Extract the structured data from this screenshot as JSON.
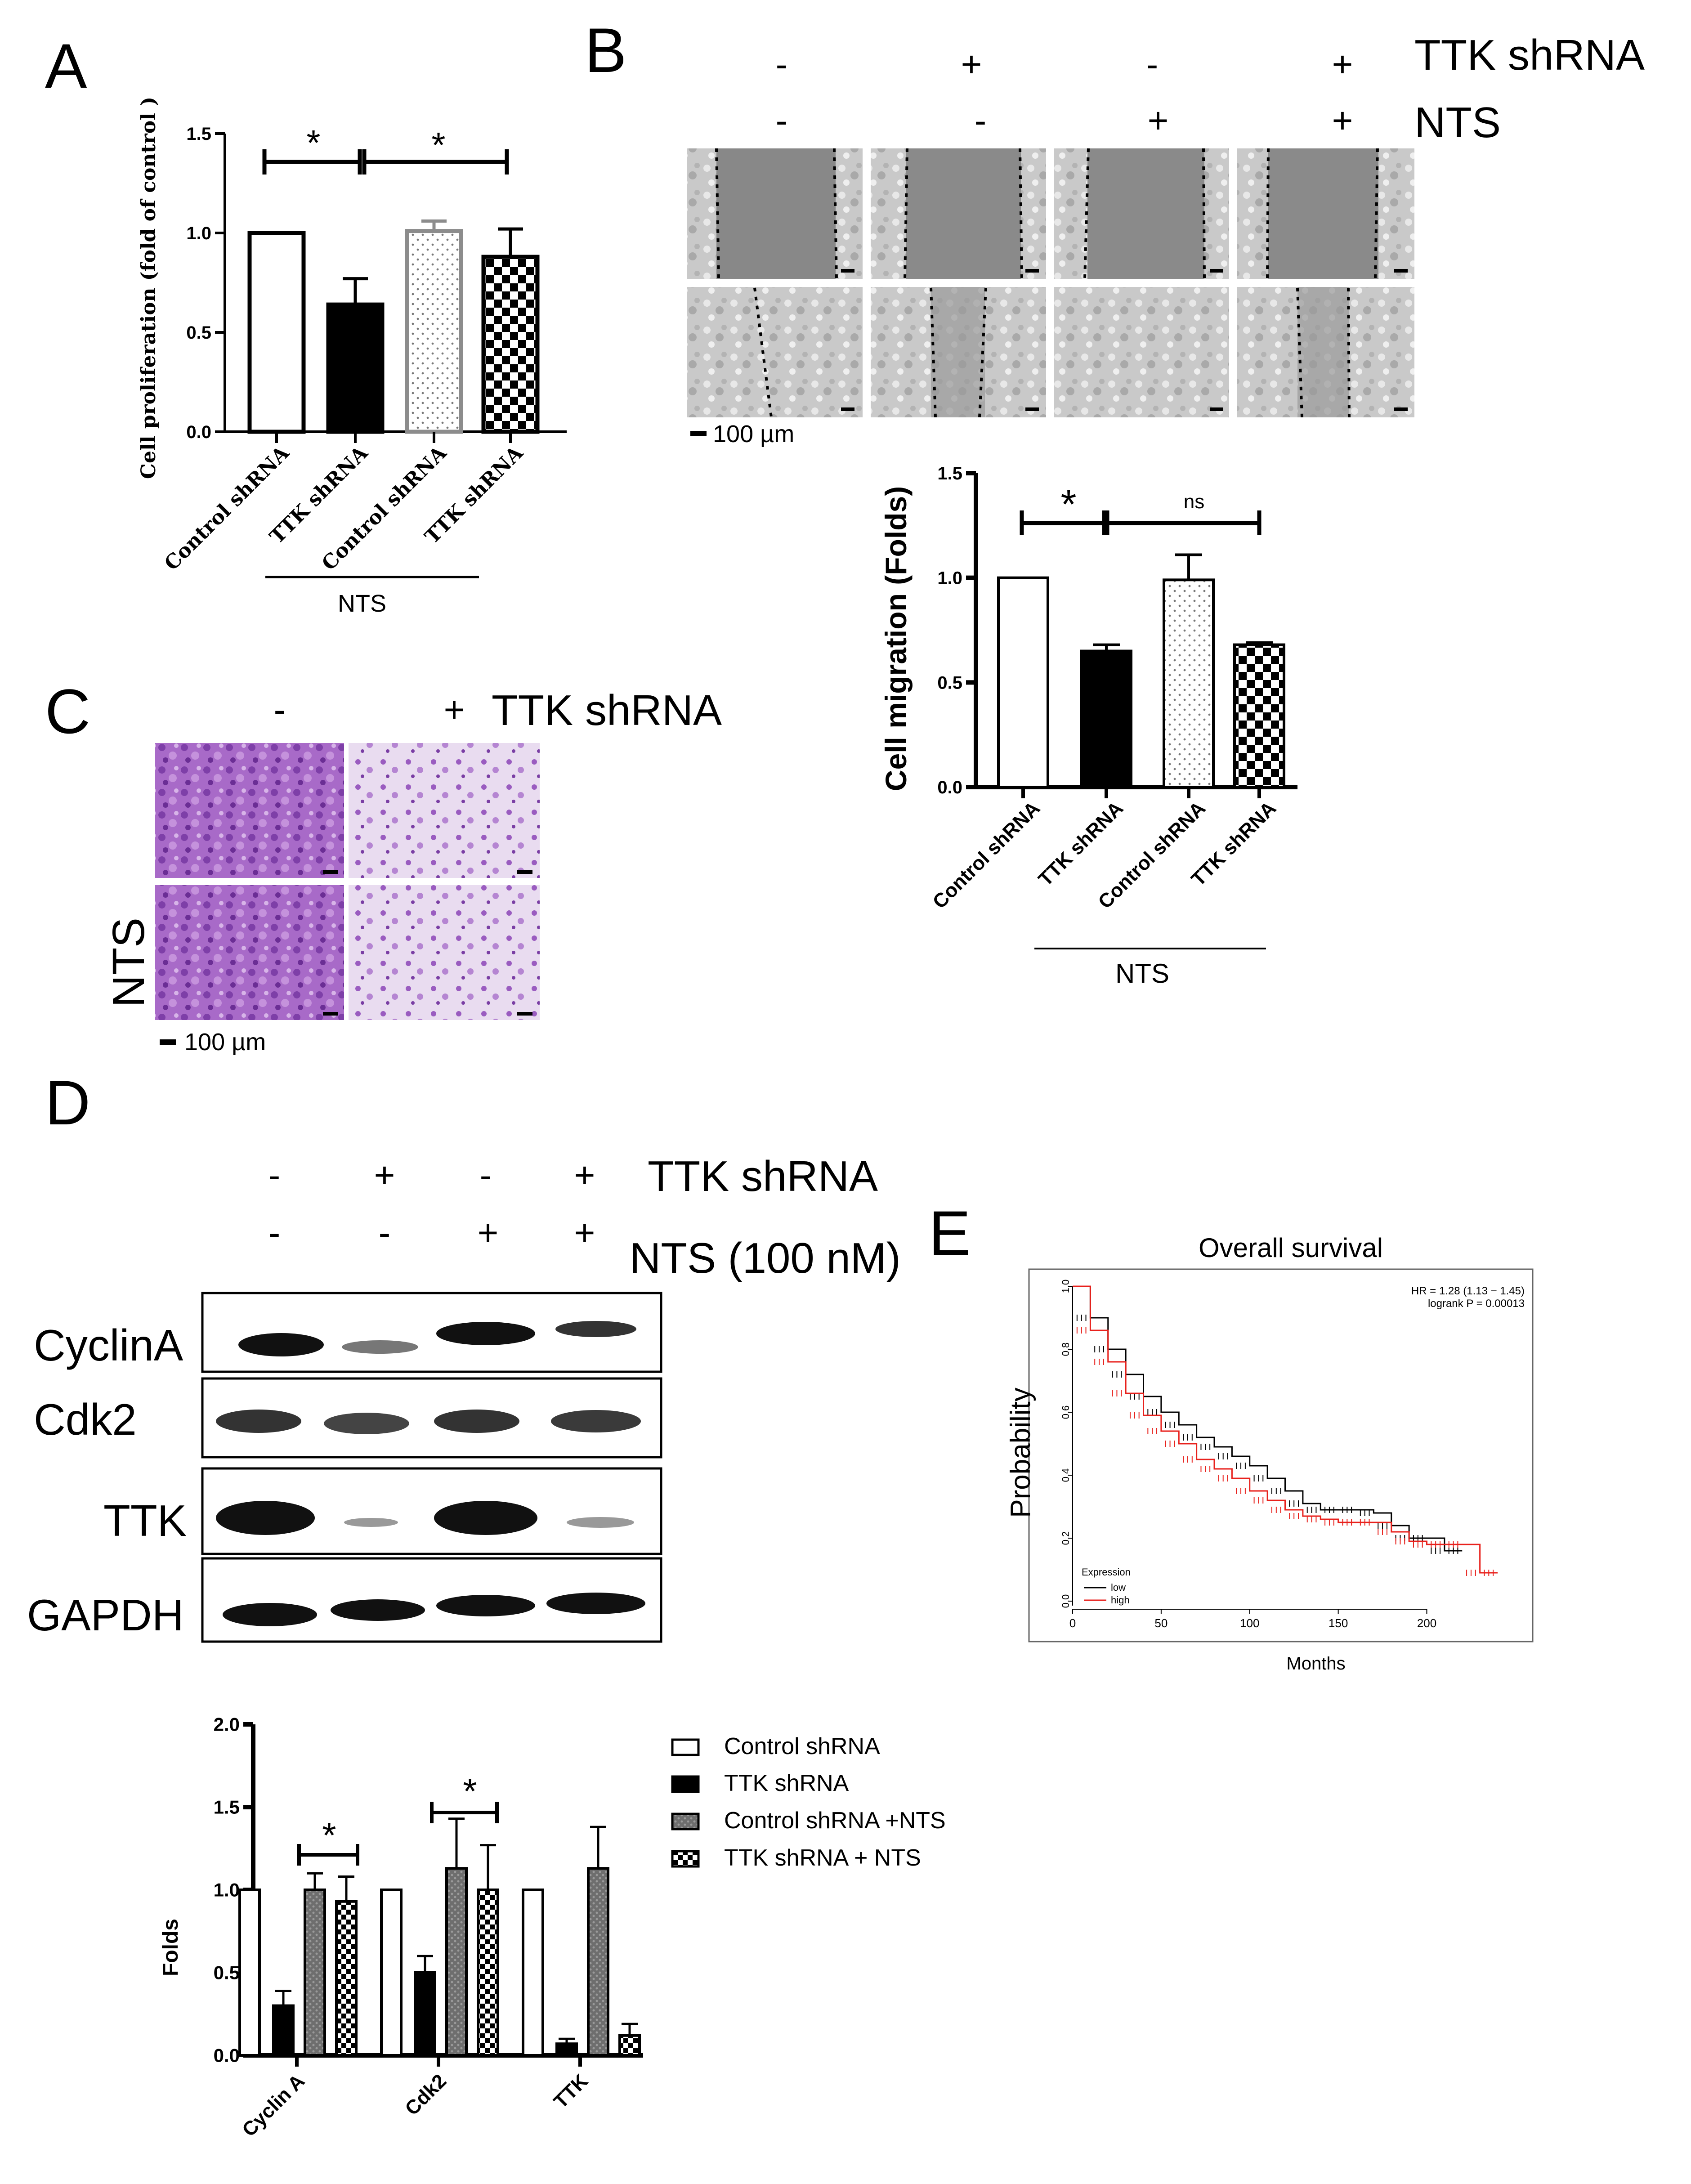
{
  "panel_labels": {
    "A": "A",
    "B": "B",
    "C": "C",
    "D": "D",
    "E": "E"
  },
  "colors": {
    "black": "#000000",
    "gray": "#8c8c8c",
    "red": "#e8211c",
    "white": "#ffffff"
  },
  "panelA": {
    "ylabel": "Cell proliferation (fold of control )",
    "yticks": [
      "0.0",
      "0.5",
      "1.0",
      "1.5"
    ],
    "categories": [
      "Control shRNA",
      "TTK shRNA",
      "Control shRNA",
      "TTK shRNA"
    ],
    "group_label": "NTS",
    "sig": [
      "*",
      "*"
    ]
  },
  "panelB": {
    "row1_signs": [
      "-",
      "+",
      "-",
      "+"
    ],
    "row1_label": "TTK shRNA",
    "row2_signs": [
      "-",
      "-",
      "+",
      "+"
    ],
    "row2_label": "NTS",
    "scale": "100 µm",
    "ylabel": "Cell migration (Folds)",
    "yticks": [
      "0.0",
      "0.5",
      "1.0",
      "1.5"
    ],
    "categories": [
      "Control shRNA",
      "TTK shRNA",
      "Control shRNA",
      "TTK shRNA"
    ],
    "group_label": "NTS",
    "sig": [
      "*",
      "ns"
    ]
  },
  "panelC": {
    "signs": [
      "-",
      "+"
    ],
    "col_label": "TTK shRNA",
    "row_label": "NTS",
    "scale": "100 µm"
  },
  "panelD": {
    "row1_signs": [
      "-",
      "+",
      "-",
      "+"
    ],
    "row1_label": "TTK shRNA",
    "row2_signs": [
      "-",
      "-",
      "+",
      "+"
    ],
    "row2_label": "NTS (100 nM)",
    "blot_labels": [
      "CyclinA",
      "Cdk2",
      "TTK",
      "GAPDH"
    ],
    "ylabel": "Folds",
    "yticks": [
      "0.0",
      "0.5",
      "1.0",
      "1.5",
      "2.0"
    ],
    "legend": [
      "Control shRNA",
      "TTK shRNA",
      "Control shRNA +NTS",
      "TTK shRNA + NTS"
    ],
    "categories": [
      "Cyclin A",
      "Cdk2",
      "TTK"
    ],
    "sig": [
      "*",
      "*"
    ]
  },
  "panelE": {
    "title": "Overall survival",
    "ylabel": "Probability",
    "xlabel": "Months",
    "hr_text": "HR = 1.28 (1.13 − 1.45)",
    "p_text": "logrank P = 0.00013",
    "legend_title": "Expression",
    "legend": [
      "low",
      "high"
    ],
    "xticks": [
      "0",
      "50",
      "100",
      "150",
      "200"
    ],
    "yticks": [
      "0.0",
      "0.2",
      "0.4",
      "0.6",
      "0.8",
      "1.0"
    ]
  },
  "chart_data": [
    {
      "id": "A",
      "type": "bar",
      "categories": [
        "Control shRNA",
        "TTK shRNA",
        "Control shRNA",
        "TTK shRNA"
      ],
      "values": [
        1.0,
        0.64,
        1.01,
        0.88
      ],
      "errors": [
        0,
        0.13,
        0.05,
        0.14
      ],
      "ylim": [
        0,
        1.5
      ],
      "ylabel": "Cell proliferation (fold of control )"
    },
    {
      "id": "B",
      "type": "bar",
      "categories": [
        "Control shRNA",
        "TTK shRNA",
        "Control shRNA",
        "TTK shRNA"
      ],
      "values": [
        1.0,
        0.65,
        0.99,
        0.68
      ],
      "errors": [
        0,
        0.03,
        0.12,
        0.01
      ],
      "ylim": [
        0,
        1.5
      ],
      "ylabel": "Cell migration (Folds)"
    },
    {
      "id": "D",
      "type": "bar",
      "categories": [
        "Cyclin A",
        "Cdk2",
        "TTK"
      ],
      "series": [
        {
          "name": "Control shRNA",
          "values": [
            1.0,
            1.0,
            1.0
          ],
          "errors": [
            0,
            0,
            0
          ]
        },
        {
          "name": "TTK shRNA",
          "values": [
            0.3,
            0.5,
            0.07
          ],
          "errors": [
            0.09,
            0.1,
            0.03
          ]
        },
        {
          "name": "Control shRNA +NTS",
          "values": [
            1.0,
            1.13,
            1.13
          ],
          "errors": [
            0.1,
            0.3,
            0.25
          ]
        },
        {
          "name": "TTK shRNA + NTS",
          "values": [
            0.93,
            1.0,
            0.12
          ],
          "errors": [
            0.15,
            0.27,
            0.07
          ]
        }
      ],
      "ylim": [
        0,
        2.0
      ],
      "ylabel": "Folds"
    },
    {
      "id": "E",
      "type": "line",
      "title": "Overall survival",
      "xlabel": "Months",
      "ylabel": "Probability",
      "xlim": [
        0,
        240
      ],
      "ylim": [
        0,
        1.0
      ],
      "series": [
        {
          "name": "low",
          "x": [
            0,
            10,
            20,
            30,
            40,
            50,
            60,
            70,
            80,
            90,
            100,
            110,
            120,
            130,
            140,
            150,
            160,
            170,
            180,
            190,
            200,
            210,
            220
          ],
          "y": [
            1.0,
            0.9,
            0.8,
            0.72,
            0.65,
            0.6,
            0.56,
            0.52,
            0.49,
            0.46,
            0.43,
            0.39,
            0.35,
            0.31,
            0.29,
            0.29,
            0.29,
            0.28,
            0.24,
            0.2,
            0.2,
            0.16,
            0.16
          ]
        },
        {
          "name": "high",
          "x": [
            0,
            10,
            20,
            30,
            40,
            50,
            60,
            70,
            80,
            90,
            100,
            110,
            120,
            130,
            140,
            150,
            160,
            170,
            180,
            190,
            200,
            210,
            220,
            230,
            240
          ],
          "y": [
            1.0,
            0.86,
            0.76,
            0.66,
            0.59,
            0.54,
            0.5,
            0.45,
            0.42,
            0.39,
            0.35,
            0.32,
            0.29,
            0.27,
            0.26,
            0.25,
            0.25,
            0.25,
            0.22,
            0.19,
            0.18,
            0.18,
            0.18,
            0.09,
            0.09
          ]
        }
      ]
    }
  ]
}
